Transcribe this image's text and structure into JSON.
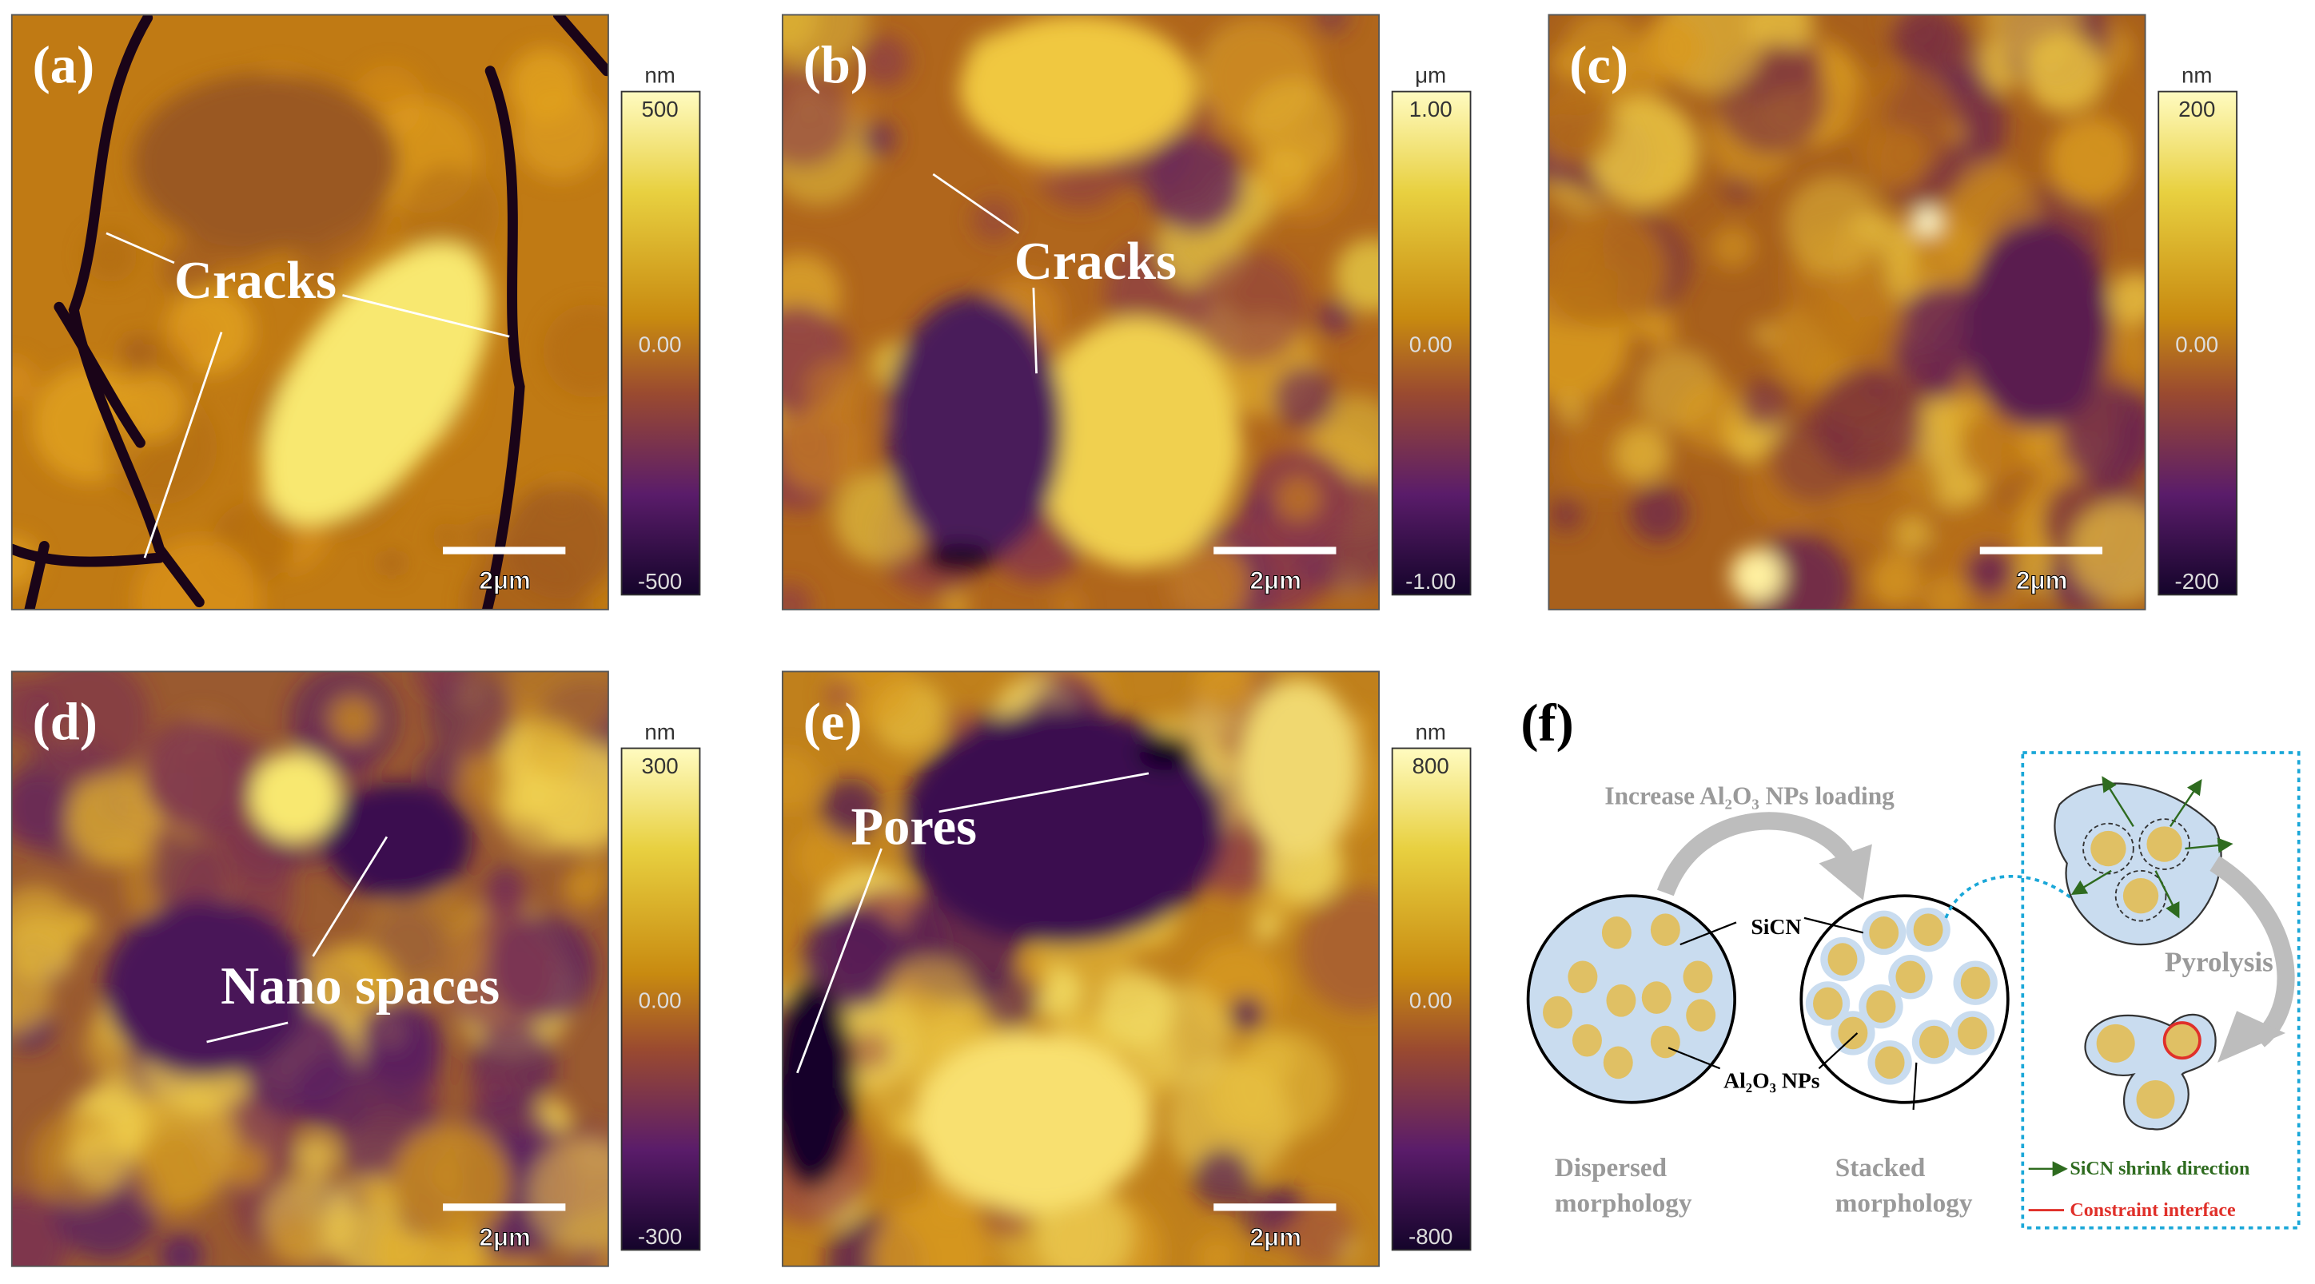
{
  "panels": [
    {
      "label": "(a)",
      "annotation": "Cracks",
      "unit": "nm",
      "ticks": [
        "500",
        "0.00",
        "-500"
      ],
      "scale_bar": "2μm"
    },
    {
      "label": "(b)",
      "annotation": "Cracks",
      "unit": "μm",
      "ticks": [
        "1.00",
        "0.00",
        "-1.00"
      ],
      "scale_bar": "2μm"
    },
    {
      "label": "(c)",
      "unit": "nm",
      "ticks": [
        "200",
        "0.00",
        "-200"
      ],
      "scale_bar": "2μm"
    },
    {
      "label": "(d)",
      "annotation": "Nano spaces",
      "unit": "nm",
      "ticks": [
        "300",
        "0.00",
        "-300"
      ],
      "scale_bar": "2μm"
    },
    {
      "label": "(e)",
      "annotation": "Pores",
      "unit": "nm",
      "ticks": [
        "800",
        "0.00",
        "-800"
      ],
      "scale_bar": "2μm"
    }
  ],
  "schematic": {
    "label": "(f)",
    "arrow_text": "Increase Al₂O₃ NPs loading",
    "matrix_label": "SiCN",
    "particle_label": "Al₂O₃ NPs",
    "left_caption": [
      "Dispersed",
      "morphology"
    ],
    "right_caption": [
      "Stacked",
      "morphology"
    ],
    "process": "Pyrolysis",
    "legend": [
      "SiCN shrink direction",
      "Constraint interface"
    ]
  }
}
